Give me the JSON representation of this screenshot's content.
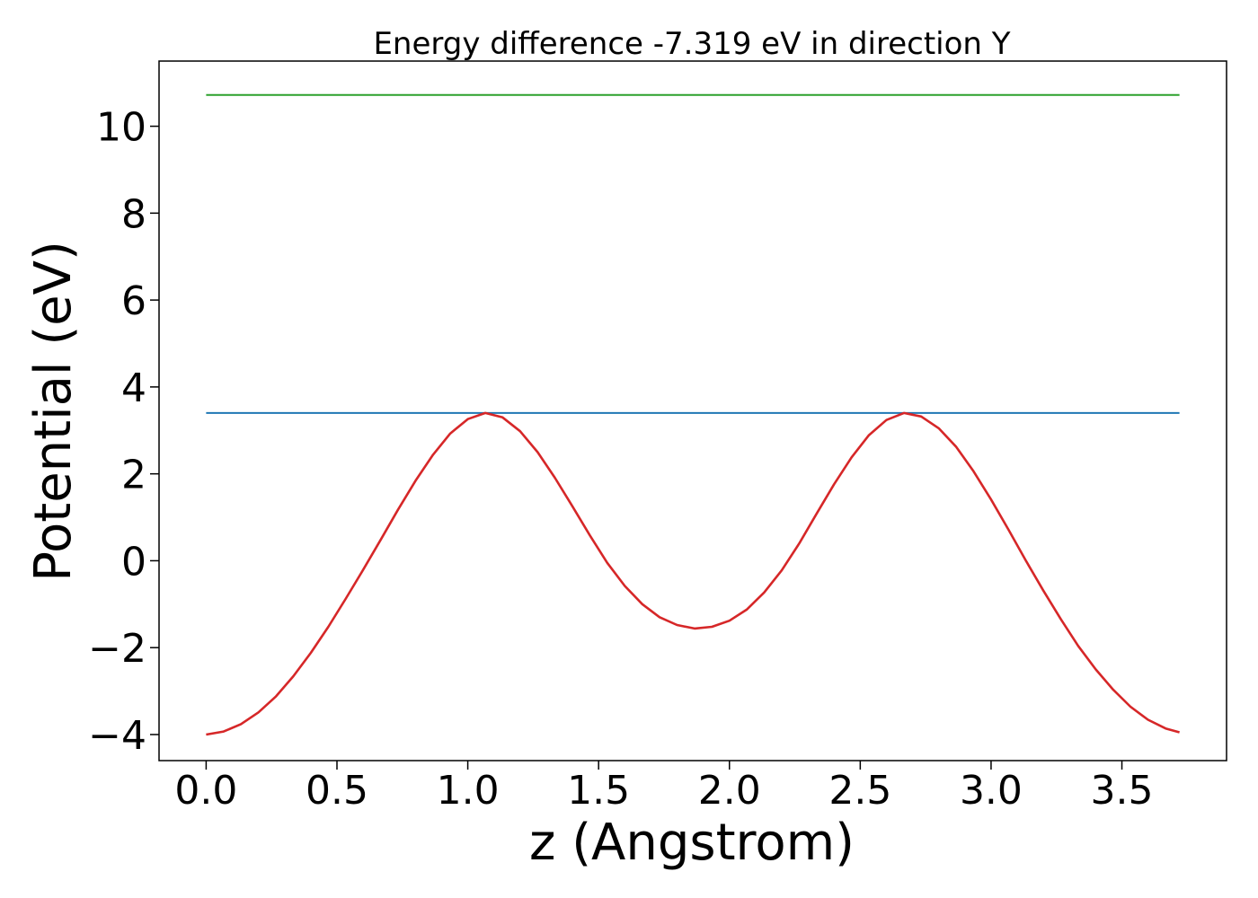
{
  "chart_data": {
    "type": "line",
    "title": "Energy difference -7.319 eV in direction Y",
    "xlabel": "z (Angstrom)",
    "ylabel": "Potential (eV)",
    "xlim": [
      -0.18,
      3.9
    ],
    "ylim": [
      -4.6,
      11.5
    ],
    "xticks": [
      0.0,
      0.5,
      1.0,
      1.5,
      2.0,
      2.5,
      3.0,
      3.5
    ],
    "xtick_labels": [
      "0.0",
      "0.5",
      "1.0",
      "1.5",
      "2.0",
      "2.5",
      "3.0",
      "3.5"
    ],
    "yticks": [
      -4,
      -2,
      0,
      2,
      4,
      6,
      8,
      10
    ],
    "ytick_labels": [
      "−4",
      "−2",
      "0",
      "2",
      "4",
      "6",
      "8",
      "10"
    ],
    "grid": false,
    "series": [
      {
        "color": "#2ca02c",
        "x": [
          0.0,
          3.72
        ],
        "y": [
          10.72,
          10.72
        ]
      },
      {
        "color": "#1f77b4",
        "x": [
          0.0,
          3.72
        ],
        "y": [
          3.4,
          3.4
        ]
      },
      {
        "color": "#d62728",
        "x": [
          0.0,
          0.067,
          0.133,
          0.2,
          0.267,
          0.333,
          0.4,
          0.467,
          0.533,
          0.6,
          0.667,
          0.733,
          0.8,
          0.867,
          0.933,
          1.0,
          1.067,
          1.133,
          1.2,
          1.267,
          1.333,
          1.4,
          1.467,
          1.533,
          1.6,
          1.667,
          1.733,
          1.8,
          1.867,
          1.933,
          2.0,
          2.067,
          2.133,
          2.2,
          2.267,
          2.333,
          2.4,
          2.467,
          2.533,
          2.6,
          2.667,
          2.733,
          2.8,
          2.867,
          2.933,
          3.0,
          3.067,
          3.133,
          3.2,
          3.267,
          3.333,
          3.4,
          3.467,
          3.533,
          3.6,
          3.667,
          3.72
        ],
        "y": [
          -4.0,
          -3.93,
          -3.76,
          -3.49,
          -3.12,
          -2.66,
          -2.12,
          -1.52,
          -0.88,
          -0.21,
          0.48,
          1.17,
          1.84,
          2.44,
          2.93,
          3.26,
          3.4,
          3.3,
          2.98,
          2.5,
          1.91,
          1.25,
          0.58,
          -0.05,
          -0.58,
          -1.0,
          -1.3,
          -1.48,
          -1.56,
          -1.52,
          -1.38,
          -1.12,
          -0.73,
          -0.22,
          0.4,
          1.08,
          1.76,
          2.38,
          2.89,
          3.24,
          3.4,
          3.32,
          3.05,
          2.62,
          2.06,
          1.41,
          0.71,
          0.0,
          -0.69,
          -1.35,
          -1.96,
          -2.5,
          -2.97,
          -3.36,
          -3.66,
          -3.86,
          -3.95
        ]
      }
    ]
  }
}
